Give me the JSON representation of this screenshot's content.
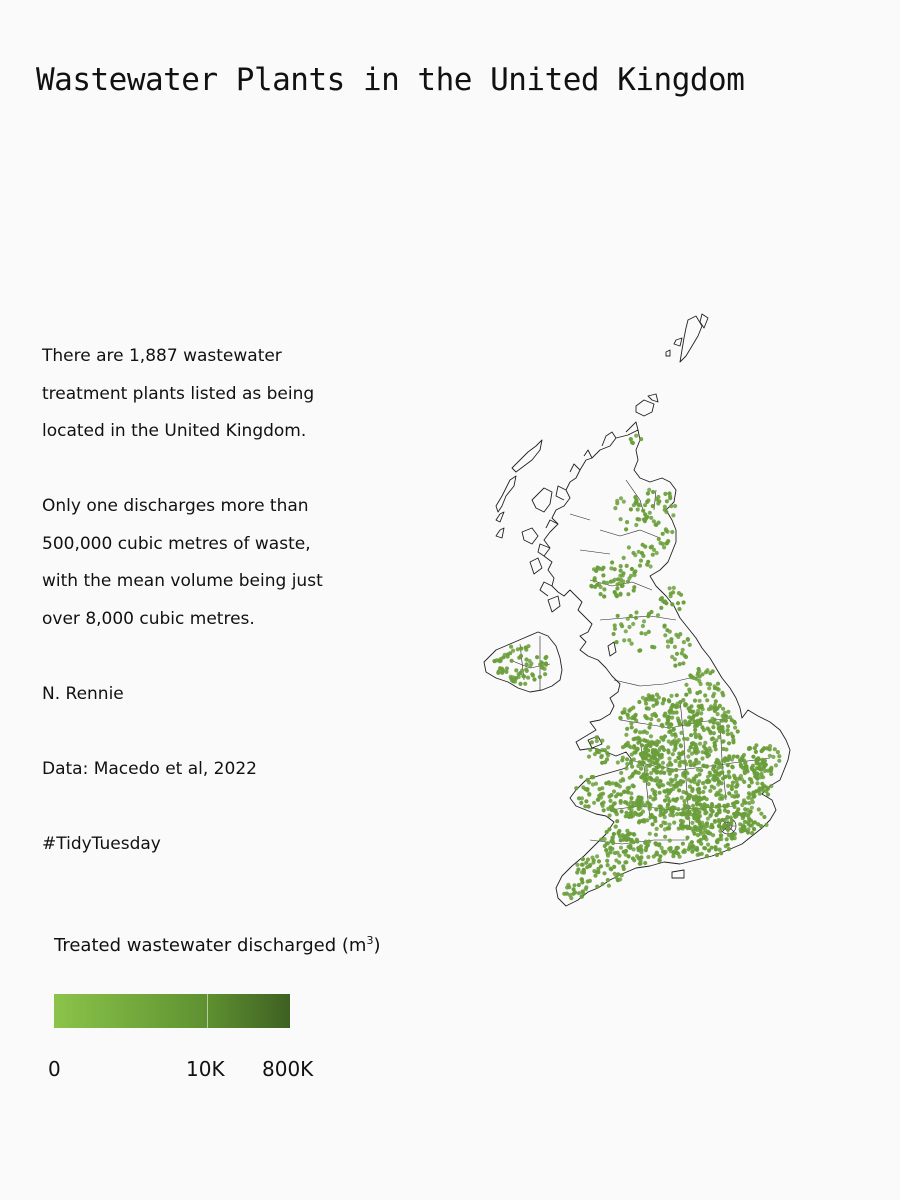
{
  "title": "Wastewater Plants in the United Kingdom",
  "description": {
    "para1": [
      "There are 1,887 wastewater",
      "treatment plants listed as being",
      "located in the United Kingdom."
    ],
    "para2": [
      "Only one discharges more than",
      "500,000 cubic metres of waste,",
      "with the mean volume being just",
      "over 8,000 cubic metres."
    ],
    "author": "N. Rennie",
    "source": "Data: Macedo et al, 2022",
    "hashtag": "#TidyTuesday"
  },
  "legend": {
    "title": "Treated wastewater discharged (m",
    "title_sup": "3",
    "title_close": ")",
    "labels": [
      "0",
      "10K",
      "800K"
    ],
    "colors": {
      "low": "#8bc34a",
      "mid": "#5d8f30",
      "high": "#3e6022"
    }
  },
  "map": {
    "point_color": "#6a9e3a",
    "outline_color": "#222222"
  }
}
